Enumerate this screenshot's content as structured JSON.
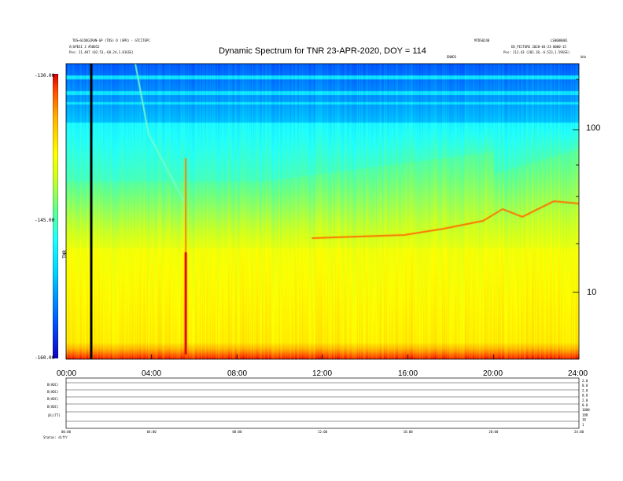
{
  "header": {
    "title": "Dynamic Spectrum for TNR 23-APR-2020, DOY = 114",
    "left_line1": "TDS+SCOOGIRAN-GP (TDS) D (SPR) - GTCITEPC",
    "left_line2": "A(GPESI 3 #50052",
    "left_line3": "Pos: 21.487 (02.53,-68.24,1.81GSE)",
    "center_right": "ENHDS",
    "right_top1": "MTDS0240",
    "right_top2": "LS0000001",
    "right_line2": "ED_PICTURE 2020-04-23-0000-15",
    "right_line3": "Pos: 212.43 (202.18,-6.523,1.59GSE)",
    "right_unit": "kHz"
  },
  "colorbar": {
    "label": "TNR",
    "ticks": [
      "-130.00",
      "-145.00",
      "-160.00"
    ]
  },
  "chart_data": {
    "type": "heatmap",
    "title": "Dynamic Spectrum for TNR 23-APR-2020, DOY = 114",
    "x_ticks": [
      "00:00",
      "04:00",
      "08:00",
      "12:00",
      "16:00",
      "20:00",
      "24:00"
    ],
    "xlim_hours": [
      0,
      24
    ],
    "y_scale": "log",
    "y_ticks": [
      "100",
      "10"
    ],
    "y_unit": "kHz",
    "colorbar_range_db": [
      -160,
      -130
    ],
    "colors": [
      "#1000c0",
      "#0050ff",
      "#00d0ff",
      "#20ffff",
      "#60ff90",
      "#d0ff20",
      "#ffff00",
      "#ffb000",
      "#ff4000",
      "#d00000"
    ],
    "features": {
      "vertical_marker_hour": 1.2,
      "radio_burst_hour": 5.6,
      "plasma_line_start_hour": 11.5,
      "plasma_line_end_hour": 24
    }
  },
  "bottom_panel": {
    "row_labels": [
      "B(ADC)",
      "B(ADC)",
      "B(ADC)",
      "B(ADC)",
      "|B|(TT)"
    ],
    "right_ticks": [
      "2.0",
      "0.0",
      "2.0",
      "0.0",
      "2.0",
      "0.0",
      "1000",
      "100",
      "10",
      "1"
    ],
    "x_ticks": [
      "00:00",
      "04:00",
      "08:00",
      "12:00",
      "16:00",
      "20:00",
      "24:00"
    ],
    "status_label": "Status: diffr"
  }
}
